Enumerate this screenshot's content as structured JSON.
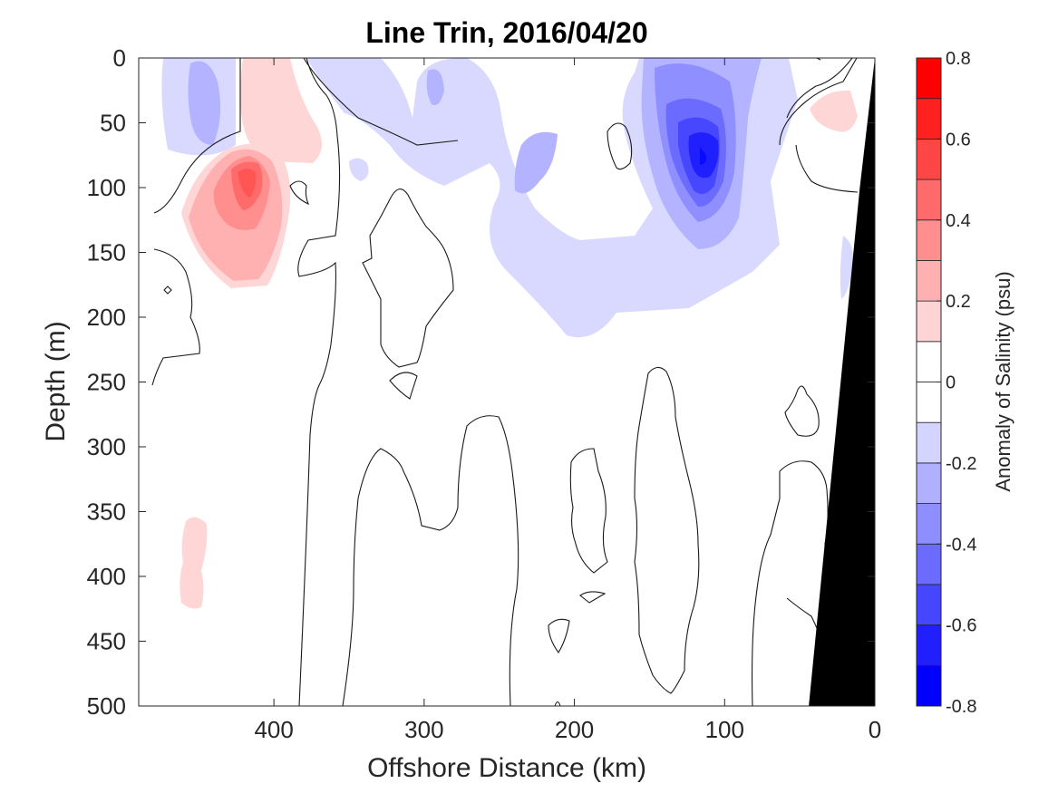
{
  "chart_data": {
    "type": "heatmap",
    "subtype": "filled contour section",
    "title": "Line Trin, 2016/04/20",
    "xlabel": "Offshore Distance (km)",
    "ylabel": "Depth (m)",
    "xlim": [
      490,
      0
    ],
    "ylim": [
      0,
      500
    ],
    "x_reversed": true,
    "y_reversed": true,
    "x_ticks": [
      "400",
      "300",
      "200",
      "100",
      "0"
    ],
    "y_ticks": [
      "0",
      "50",
      "100",
      "150",
      "200",
      "250",
      "300",
      "350",
      "400",
      "450",
      "500"
    ],
    "colorbar": {
      "label": "Anomaly of Salinity (psu)",
      "range": [
        -0.8,
        0.8
      ],
      "ticks": [
        "-0.8",
        "-0.6",
        "-0.4",
        "-0.2",
        "0",
        "0.2",
        "0.4",
        "0.6",
        "0.8"
      ],
      "levels": [
        -0.8,
        -0.7,
        -0.6,
        -0.5,
        -0.4,
        -0.3,
        -0.2,
        -0.1,
        0,
        0.1,
        0.2,
        0.3,
        0.4,
        0.5,
        0.6,
        0.7,
        0.8
      ],
      "colors": [
        "#0000ff",
        "#2020ff",
        "#4646ff",
        "#6b6bff",
        "#8e8eff",
        "#b0b0ff",
        "#d4d4ff",
        "#ffffff",
        "#ffffff",
        "#ffd4d4",
        "#ffb0b0",
        "#ff8e8e",
        "#ff6b6b",
        "#ff4646",
        "#ff2020",
        "#ff0000"
      ],
      "location": "right"
    },
    "grid": false,
    "bottom_topography": {
      "color": "#000000",
      "points": [
        [
          0,
          0
        ],
        [
          0,
          500
        ],
        [
          30,
          500
        ],
        [
          12,
          100
        ]
      ]
    },
    "features": [
      {
        "name": "positive anomaly core",
        "x_km": 420,
        "depth_m": 90,
        "peak": 0.5
      },
      {
        "name": "negative anomaly core",
        "x_km": 110,
        "depth_m": 75,
        "peak": -0.7
      },
      {
        "name": "weak positive patch",
        "x_km": 455,
        "depth_m": 390,
        "peak": 0.1
      },
      {
        "name": "weak positive patch",
        "x_km": 20,
        "depth_m": 55,
        "peak": 0.1
      },
      {
        "name": "weak negative band",
        "x_km_range": [
          200,
          40
        ],
        "depth_m_range": [
          0,
          210
        ],
        "peak": -0.2
      }
    ]
  }
}
